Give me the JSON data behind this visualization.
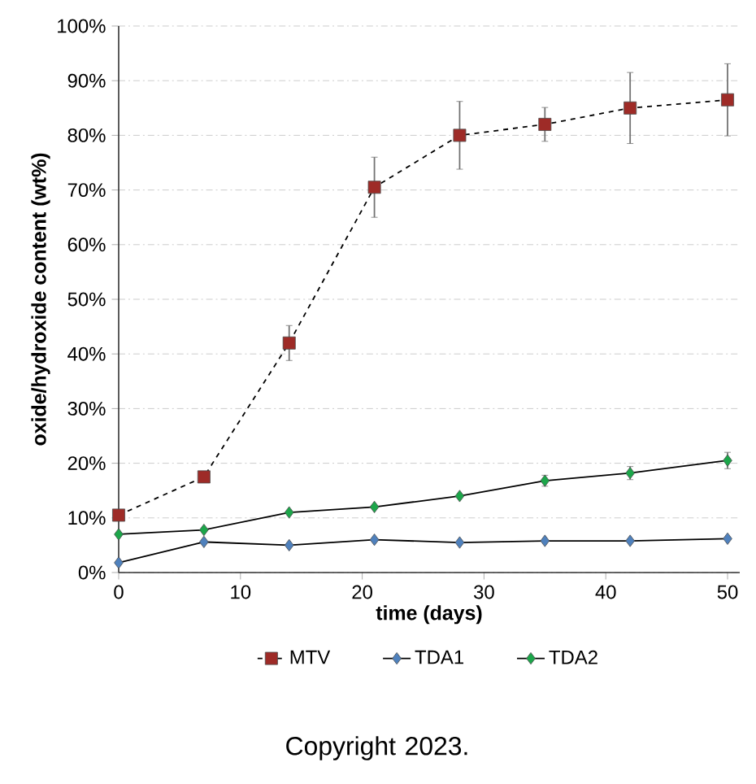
{
  "chart_data": {
    "type": "line",
    "xlabel": "time (days)",
    "ylabel": "oxide/hydroxide content (wt%)",
    "x": [
      0,
      7,
      14,
      21,
      28,
      35,
      42,
      50
    ],
    "series": [
      {
        "name": "MTV",
        "color": "#9e2b27",
        "marker": "square",
        "line_style": "dashed",
        "values": [
          10.5,
          17.5,
          42,
          70.5,
          80,
          82,
          85,
          86.5
        ],
        "errors": [
          null,
          null,
          3.2,
          5.5,
          6.2,
          3.1,
          6.5,
          6.6
        ]
      },
      {
        "name": "TDA1",
        "color": "#4f81bd",
        "marker": "diamond",
        "line_style": "solid",
        "values": [
          1.8,
          5.6,
          5,
          6,
          5.5,
          5.8,
          5.8,
          6.2
        ]
      },
      {
        "name": "TDA2",
        "color": "#1ca64a",
        "marker": "diamond",
        "line_style": "solid",
        "values": [
          7,
          7.8,
          11,
          12,
          14,
          16.8,
          18.2,
          20.5
        ],
        "errors": [
          null,
          null,
          null,
          null,
          null,
          1,
          1.2,
          1.5
        ]
      }
    ],
    "xlim": [
      0,
      51
    ],
    "xticks": [
      0,
      10,
      20,
      30,
      40,
      50
    ],
    "ylim": [
      0,
      100
    ],
    "yticks": [
      {
        "value": 0,
        "label": "0%"
      },
      {
        "value": 10,
        "label": "10%"
      },
      {
        "value": 20,
        "label": "20%"
      },
      {
        "value": 30,
        "label": "30%"
      },
      {
        "value": 40,
        "label": "40%"
      },
      {
        "value": 50,
        "label": "50%"
      },
      {
        "value": 60,
        "label": "60%"
      },
      {
        "value": 70,
        "label": "70%"
      },
      {
        "value": 80,
        "label": "80%"
      },
      {
        "value": 90,
        "label": "90%"
      },
      {
        "value": 100,
        "label": "100%"
      }
    ],
    "grid": "y",
    "legend": "bottom",
    "annotations": [
      "Copyright 2023."
    ]
  }
}
